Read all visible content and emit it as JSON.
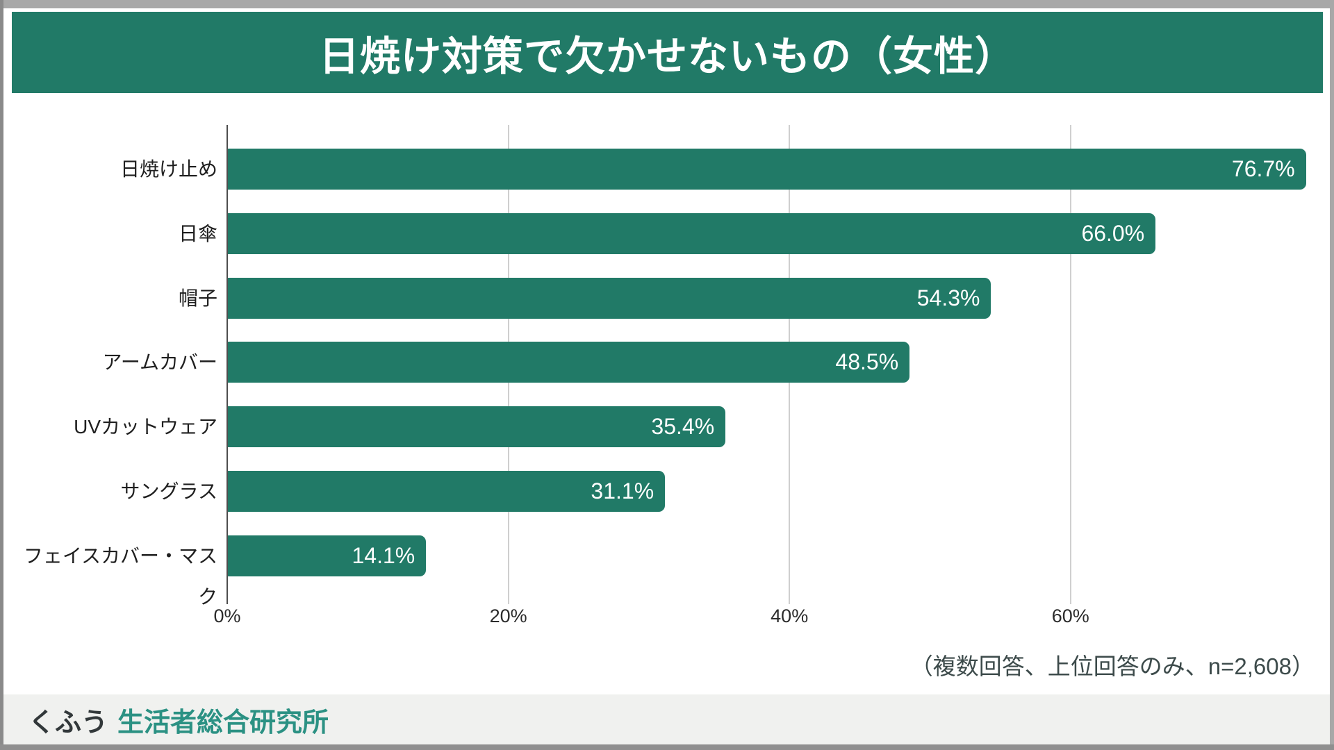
{
  "title": "日焼け対策で欠かせないもの（女性）",
  "chart_data": {
    "type": "bar",
    "orientation": "horizontal",
    "title": "日焼け対策で欠かせないもの（女性）",
    "categories": [
      "日焼け止め",
      "日傘",
      "帽子",
      "アームカバー",
      "UVカットウェア",
      "サングラス",
      "フェイスカバー・マスク"
    ],
    "values": [
      76.7,
      66.0,
      54.3,
      48.5,
      35.4,
      31.1,
      14.1
    ],
    "value_labels": [
      "76.7%",
      "66.0%",
      "54.3%",
      "48.5%",
      "35.4%",
      "31.1%",
      "14.1%"
    ],
    "xlabel": "",
    "ylabel": "",
    "x_tick_labels": [
      "0%",
      "20%",
      "40%",
      "60%"
    ],
    "x_tick_values": [
      0,
      20,
      40,
      60
    ],
    "xlim": [
      0,
      78.7
    ],
    "grid": "vertical-only",
    "legend": "none",
    "bar_color": "#217A67"
  },
  "note": "（複数回答、上位回答のみ、n=2,608）",
  "footer": {
    "brand_left": "くふう",
    "brand_right": "生活者総合研究所"
  },
  "colors": {
    "header_bg": "#217A67",
    "bar": "#217A67",
    "value_text": "#FFFFFF",
    "gridline": "#CFCFCF",
    "axis": "#4D4D4D",
    "note_text": "#3C4A4A",
    "footer_bg": "#F0F1EF",
    "brand_left_text": "#32383A",
    "brand_right_text": "#2B9183"
  }
}
